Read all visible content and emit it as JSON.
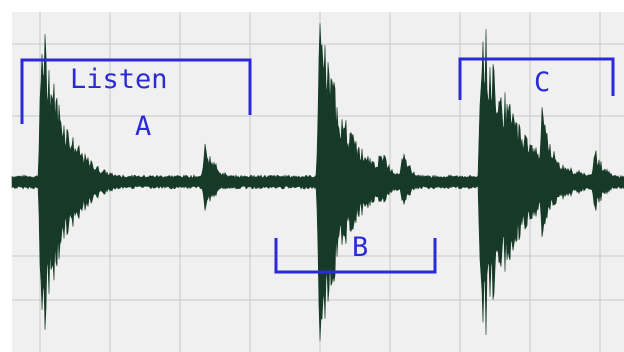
{
  "labels": {
    "listen": "Listen",
    "a": "A",
    "b": "B",
    "c": "C"
  },
  "colors": {
    "panel_bg": "#f0f0f0",
    "grid": "#c8c8c8",
    "waveform": "#173a28",
    "bracket": "#2a2ad8"
  }
}
